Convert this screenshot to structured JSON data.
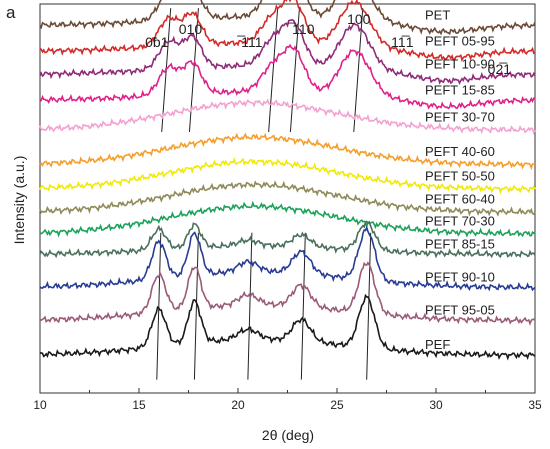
{
  "chart_data": {
    "type": "line",
    "panel_label": "a",
    "xlabel": "2θ (deg)",
    "ylabel": "Intensity (a.u.)",
    "xlim": [
      10,
      35
    ],
    "xticks": [
      "10",
      "15",
      "20",
      "25",
      "30",
      "35"
    ],
    "y_ticks_shown": false,
    "grid": false,
    "legend": "labels placed at right end of each curve",
    "peak_labels": [
      {
        "text": "0ƀ1",
        "x": 15.9
      },
      {
        "text": "010",
        "x": 17.6
      },
      {
        "text": "̅111",
        "x": 20.7
      },
      {
        "text": "̅110",
        "x": 23.3
      },
      {
        "text": "100",
        "x": 26.1
      },
      {
        "text": "11̅1",
        "x": 28.3
      },
      {
        "text": "02̅1",
        "x": 33.2
      }
    ],
    "series": [
      {
        "name": "PET",
        "color": "#6b4a36",
        "kind": "pet",
        "offset": 12.0
      },
      {
        "name": "PEFT 05-95",
        "color": "#d42a2a",
        "kind": "pet",
        "offset": 11.1
      },
      {
        "name": "PEFT 10-90",
        "color": "#8e2c78",
        "kind": "pet",
        "offset": 10.3
      },
      {
        "name": "PEFT 15-85",
        "color": "#e0218a",
        "kind": "pet",
        "offset": 9.4
      },
      {
        "name": "PEFT 30-70",
        "color": "#f3a2cf",
        "kind": "amorphous",
        "offset": 8.45
      },
      {
        "name": "PEFT 40-60",
        "color": "#f59e2a",
        "kind": "amorphous",
        "offset": 7.25
      },
      {
        "name": "PEFT 50-50",
        "color": "#f2ea00",
        "kind": "amorphous",
        "offset": 6.4
      },
      {
        "name": "PEFT 60-40",
        "color": "#8e8a5a",
        "kind": "amorphous",
        "offset": 5.6
      },
      {
        "name": "PEFT 70-30",
        "color": "#1da25a",
        "kind": "amorphous",
        "offset": 4.85
      },
      {
        "name": "PEFT 85-15",
        "color": "#4b6f5d",
        "kind": "pef",
        "offset": 4.05
      },
      {
        "name": "PEFT 90-10",
        "color": "#283c94",
        "kind": "pef",
        "offset": 2.9
      },
      {
        "name": "PEFT 95-05",
        "color": "#9b5a78",
        "kind": "pef",
        "offset": 1.75
      },
      {
        "name": "PEF",
        "color": "#1a1a1a",
        "kind": "pef",
        "offset": 0.55
      }
    ],
    "peak_guides": {
      "pet": [
        16.4,
        17.8,
        21.8,
        22.9,
        26.1
      ],
      "pef": [
        16.0,
        17.9,
        20.6,
        23.3,
        26.6
      ]
    }
  }
}
